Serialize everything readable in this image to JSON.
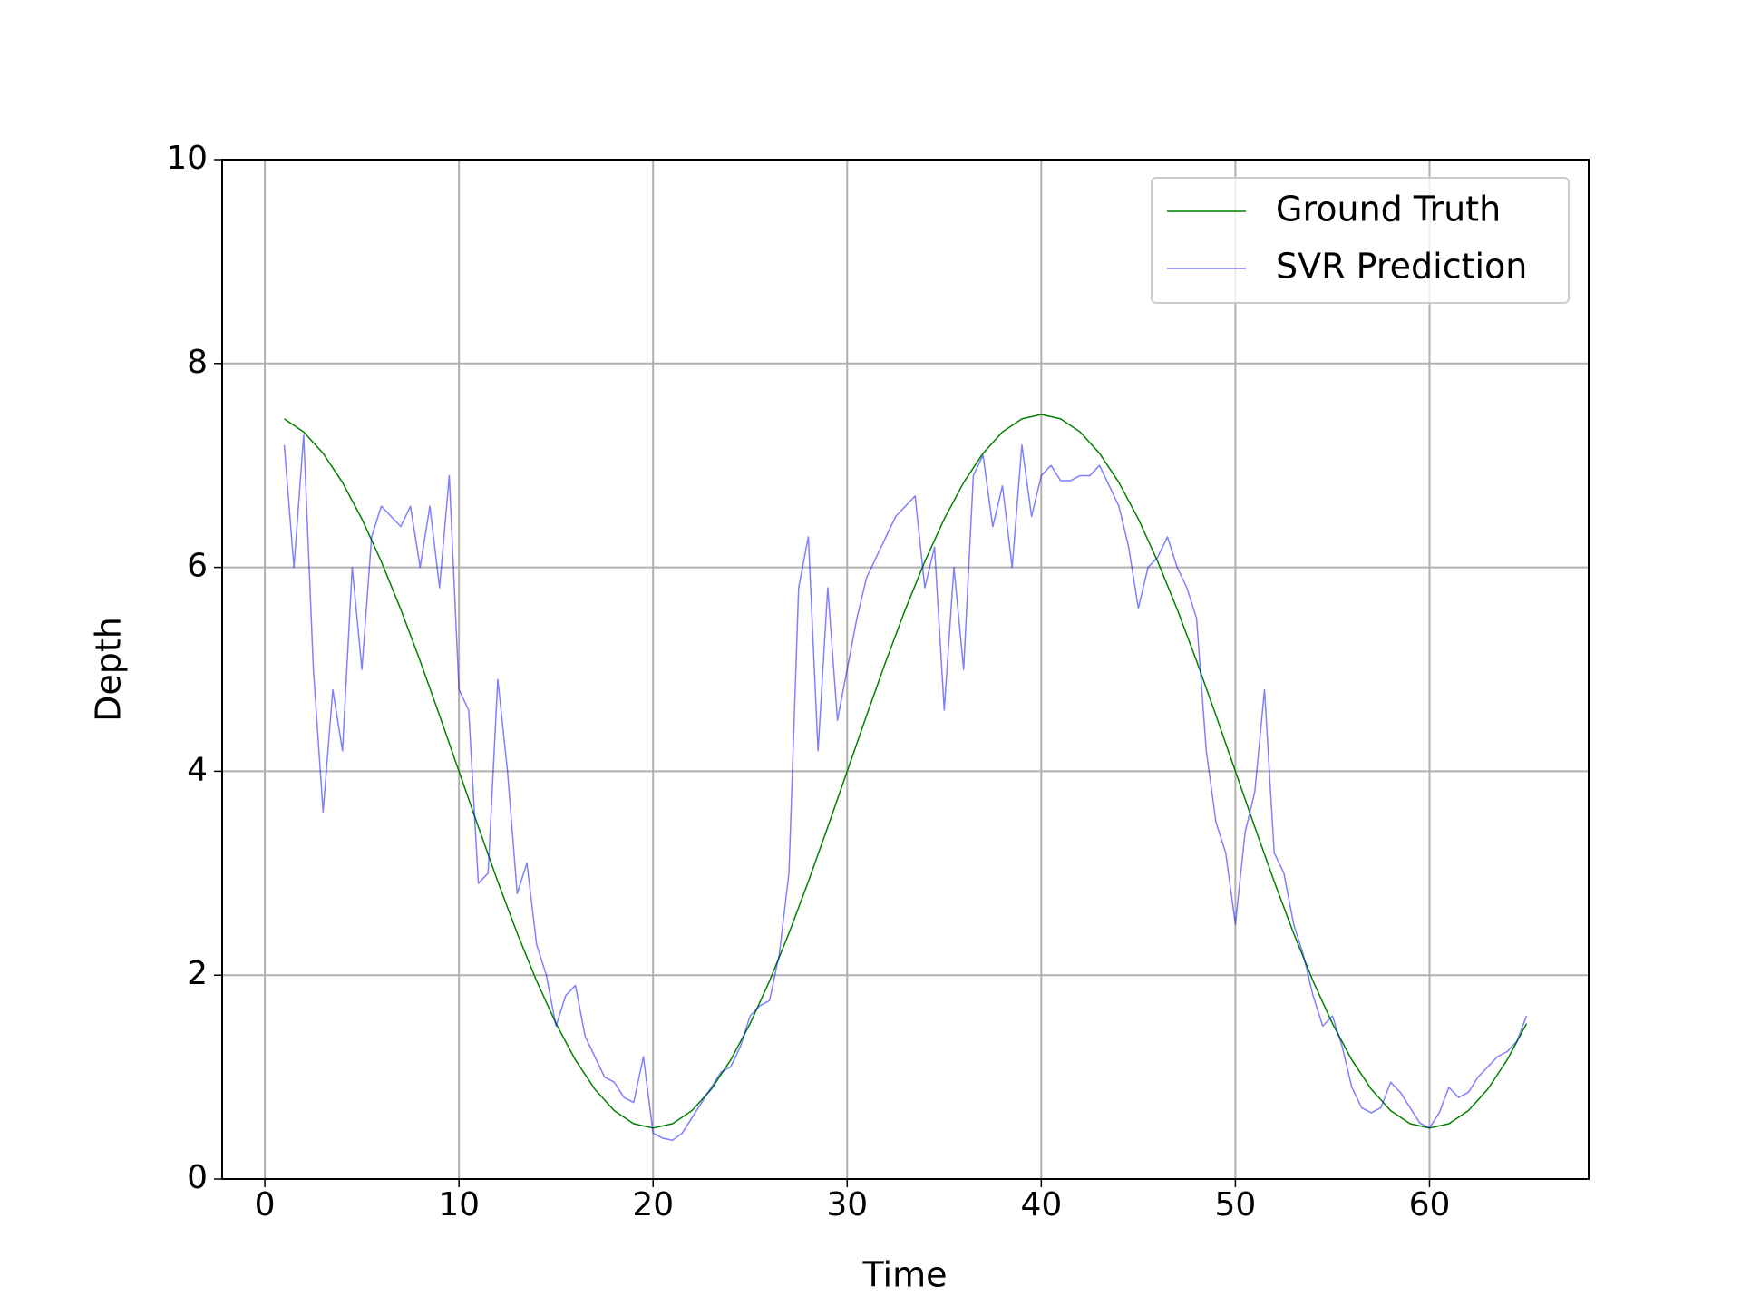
{
  "chart_data": {
    "type": "line",
    "x_label": "Time",
    "y_label": "Depth",
    "xlim": [
      -2.2,
      68.2
    ],
    "ylim": [
      0,
      10
    ],
    "xticks": [
      0,
      10,
      20,
      30,
      40,
      50,
      60
    ],
    "yticks": [
      0,
      2,
      4,
      6,
      8,
      10
    ],
    "grid": true,
    "legend": "upper right",
    "series": [
      {
        "name": "Ground Truth",
        "color": "#008000",
        "opacity": 1,
        "x": [
          1,
          2,
          3,
          4,
          5,
          6,
          7,
          8,
          9,
          10,
          11,
          12,
          13,
          14,
          15,
          16,
          17,
          18,
          19,
          20,
          21,
          22,
          23,
          24,
          25,
          26,
          27,
          28,
          29,
          30,
          31,
          32,
          33,
          34,
          35,
          36,
          37,
          38,
          39,
          40,
          41,
          42,
          43,
          44,
          45,
          46,
          47,
          48,
          49,
          50,
          51,
          52,
          53,
          54,
          55,
          56,
          57,
          58,
          59,
          60,
          61,
          62,
          63,
          64,
          65
        ],
        "values": [
          7.457,
          7.329,
          7.119,
          6.832,
          6.475,
          6.057,
          5.589,
          5.082,
          4.547,
          4.0,
          3.453,
          2.918,
          2.411,
          1.943,
          1.525,
          1.168,
          0.881,
          0.671,
          0.543,
          0.5,
          0.543,
          0.671,
          0.881,
          1.168,
          1.525,
          1.943,
          2.411,
          2.918,
          3.453,
          4.0,
          4.547,
          5.082,
          5.589,
          6.057,
          6.475,
          6.832,
          7.119,
          7.329,
          7.457,
          7.5,
          7.457,
          7.329,
          7.119,
          6.832,
          6.475,
          6.057,
          5.589,
          5.082,
          4.547,
          4.0,
          3.453,
          2.918,
          2.411,
          1.943,
          1.525,
          1.168,
          0.881,
          0.671,
          0.543,
          0.5,
          0.543,
          0.671,
          0.881,
          1.168,
          1.525
        ]
      },
      {
        "name": "SVR Prediction",
        "color": "#0000ff",
        "opacity": 0.5,
        "x": [
          1,
          1.5,
          2,
          2.5,
          3,
          3.5,
          4,
          4.5,
          5,
          5.5,
          6,
          6.5,
          7,
          7.5,
          8,
          8.5,
          9,
          9.5,
          10,
          10.5,
          11,
          11.5,
          12,
          12.5,
          13,
          13.5,
          14,
          14.5,
          15,
          15.5,
          16,
          16.5,
          17,
          17.5,
          18,
          18.5,
          19,
          19.5,
          20,
          20.5,
          21,
          21.5,
          22,
          22.5,
          23,
          23.5,
          24,
          24.5,
          25,
          25.5,
          26,
          26.5,
          27,
          27.5,
          28,
          28.5,
          29,
          29.5,
          30,
          30.5,
          31,
          31.5,
          32,
          32.5,
          33,
          33.5,
          34,
          34.5,
          35,
          35.5,
          36,
          36.5,
          37,
          37.5,
          38,
          38.5,
          39,
          39.5,
          40,
          40.5,
          41,
          41.5,
          42,
          42.5,
          43,
          43.5,
          44,
          44.5,
          45,
          45.5,
          46,
          46.5,
          47,
          47.5,
          48,
          48.5,
          49,
          49.5,
          50,
          50.5,
          51,
          51.5,
          52,
          52.5,
          53,
          53.5,
          54,
          54.5,
          55,
          55.5,
          56,
          56.5,
          57,
          57.5,
          58,
          58.5,
          59,
          59.5,
          60,
          60.5,
          61,
          61.5,
          62,
          62.5,
          63,
          63.5,
          64,
          64.5,
          65
        ],
        "values": [
          7.2,
          6.0,
          7.3,
          5.0,
          3.6,
          4.8,
          4.2,
          6.0,
          5.0,
          6.3,
          6.6,
          6.5,
          6.4,
          6.6,
          6.0,
          6.6,
          5.8,
          6.9,
          4.8,
          4.6,
          2.9,
          3.0,
          4.9,
          4.0,
          2.8,
          3.1,
          2.3,
          2.0,
          1.5,
          1.8,
          1.9,
          1.4,
          1.2,
          1.0,
          0.95,
          0.8,
          0.75,
          1.2,
          0.45,
          0.4,
          0.38,
          0.45,
          0.6,
          0.75,
          0.9,
          1.05,
          1.1,
          1.3,
          1.6,
          1.7,
          1.75,
          2.2,
          3.0,
          5.8,
          6.3,
          4.2,
          5.8,
          4.5,
          5.0,
          5.5,
          5.9,
          6.1,
          6.3,
          6.5,
          6.6,
          6.7,
          5.8,
          6.2,
          4.6,
          6.0,
          5.0,
          6.9,
          7.1,
          6.4,
          6.8,
          6.0,
          7.2,
          6.5,
          6.9,
          7.0,
          6.85,
          6.85,
          6.9,
          6.9,
          7.0,
          6.8,
          6.6,
          6.2,
          5.6,
          6.0,
          6.1,
          6.3,
          6.0,
          5.8,
          5.5,
          4.2,
          3.5,
          3.2,
          2.5,
          3.4,
          3.8,
          4.8,
          3.2,
          3.0,
          2.5,
          2.2,
          1.8,
          1.5,
          1.6,
          1.3,
          0.9,
          0.7,
          0.65,
          0.7,
          0.95,
          0.85,
          0.7,
          0.55,
          0.5,
          0.65,
          0.9,
          0.8,
          0.85,
          1.0,
          1.1,
          1.2,
          1.25,
          1.35,
          1.6
        ]
      }
    ]
  }
}
